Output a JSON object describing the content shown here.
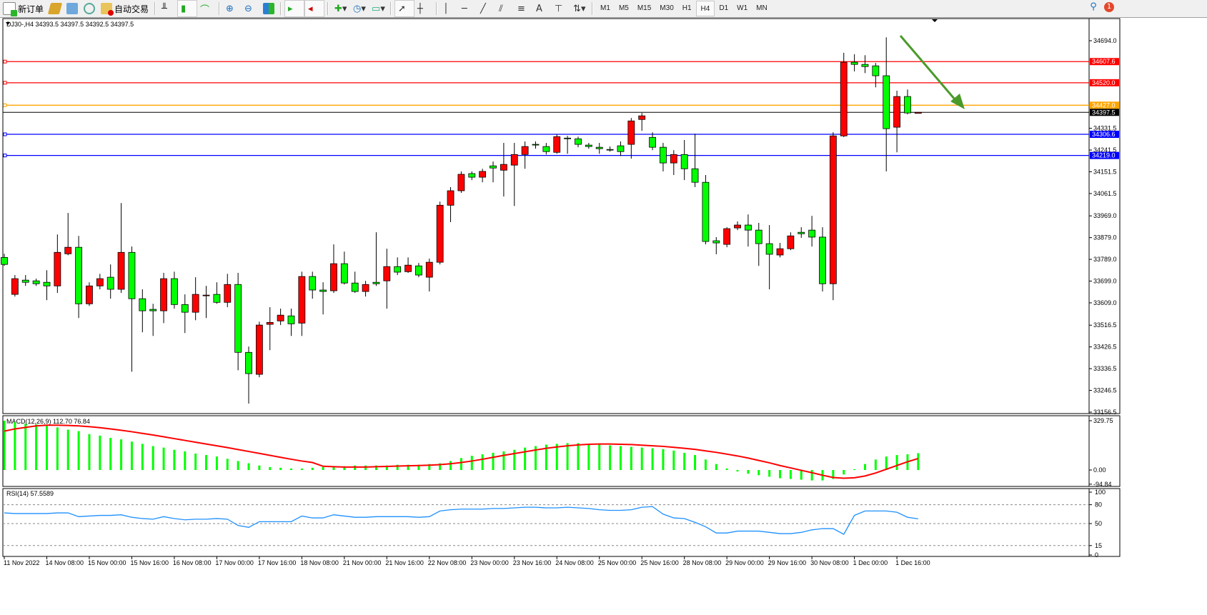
{
  "toolbar": {
    "new_order": "新订单",
    "auto_trading": "自动交易",
    "timeframes": [
      "M1",
      "M5",
      "M15",
      "M30",
      "H1",
      "H4",
      "D1",
      "W1",
      "MN"
    ],
    "active_timeframe": "H4",
    "notification_count": "1",
    "icons": [
      "new-order-icon",
      "market-watch-icon",
      "navigator-icon",
      "signals-icon",
      "auto-trading-icon",
      "bar-chart-icon",
      "candlestick-icon",
      "line-chart-icon",
      "zoom-in-icon",
      "zoom-out-icon",
      "tile-windows-icon",
      "auto-scroll-icon",
      "chart-shift-icon",
      "indicators-icon",
      "periods-icon",
      "templates-icon",
      "cursor-icon",
      "crosshair-icon",
      "vertical-line-icon",
      "horizontal-line-icon",
      "trendline-icon",
      "equidistant-channel-icon",
      "fibonacci-icon",
      "text-icon",
      "text-label-icon",
      "arrows-icon",
      "search-icon",
      "notification-icon"
    ]
  },
  "chart": {
    "header": "DJ30-,H4  34393.5 34397.5 34392.5 34397.5",
    "symbol": "DJ30-",
    "timeframe": "H4",
    "colors": {
      "bull": "#ff0000",
      "bear": "#00ff00",
      "macd_hist": "#00ff00",
      "signal": "#ff0000",
      "rsi": "#1e90ff",
      "arrow": "#4a9a2a"
    },
    "price_ticks": [
      "34694.0",
      "34331.5",
      "34241.5",
      "34151.5",
      "34061.5",
      "33969.0",
      "33879.0",
      "33789.0",
      "33699.0",
      "33609.0",
      "33516.5",
      "33426.5",
      "33336.5",
      "33246.5",
      "33156.5"
    ],
    "levels": [
      {
        "price": "34607.6",
        "color": "#ff0000"
      },
      {
        "price": "34520.0",
        "color": "#ff0000"
      },
      {
        "price": "34427.0",
        "color": "#ffa500"
      },
      {
        "price": "34397.5",
        "color": "#000000"
      },
      {
        "price": "34306.6",
        "color": "#0000ff"
      },
      {
        "price": "34219.0",
        "color": "#0000ff"
      }
    ],
    "time_labels": [
      "11 Nov 2022",
      "14 Nov 08:00",
      "15 Nov 00:00",
      "15 Nov 16:00",
      "16 Nov 08:00",
      "17 Nov 00:00",
      "17 Nov 16:00",
      "18 Nov 08:00",
      "21 Nov 00:00",
      "21 Nov 16:00",
      "22 Nov 08:00",
      "23 Nov 00:00",
      "23 Nov 16:00",
      "24 Nov 08:00",
      "25 Nov 00:00",
      "25 Nov 16:00",
      "28 Nov 08:00",
      "29 Nov 00:00",
      "29 Nov 16:00",
      "30 Nov 08:00",
      "1 Dec 00:00",
      "1 Dec 16:00"
    ]
  },
  "macd": {
    "label": "MACD(12,26,9) 112.70 76.84",
    "ticks": [
      "329.75",
      "0.00",
      "-94.84"
    ]
  },
  "rsi": {
    "label": "RSI(14) 57.5589",
    "ticks": [
      "100",
      "80",
      "50",
      "15",
      "0"
    ]
  },
  "chart_data": [
    {
      "type": "candlestick",
      "title": "DJ30-,H4",
      "ylim": [
        33156.5,
        34694.0
      ],
      "ohlc": [
        [
          33797,
          33812,
          33762,
          33768
        ],
        [
          33644,
          33724,
          33635,
          33709
        ],
        [
          33703,
          33724,
          33679,
          33694
        ],
        [
          33700,
          33709,
          33679,
          33688
        ],
        [
          33694,
          33744,
          33620,
          33679
        ],
        [
          33679,
          33892,
          33650,
          33818
        ],
        [
          33812,
          33981,
          33806,
          33839
        ],
        [
          33839,
          33886,
          33546,
          33605
        ],
        [
          33605,
          33694,
          33596,
          33679
        ],
        [
          33679,
          33729,
          33665,
          33709
        ],
        [
          33715,
          33768,
          33626,
          33665
        ],
        [
          33665,
          34022,
          33650,
          33818
        ],
        [
          33818,
          33842,
          33324,
          33626
        ],
        [
          33626,
          33665,
          33487,
          33576
        ],
        [
          33582,
          33605,
          33472,
          33576
        ],
        [
          33576,
          33733,
          33525,
          33709
        ],
        [
          33709,
          33738,
          33585,
          33602
        ],
        [
          33602,
          33644,
          33484,
          33570
        ],
        [
          33570,
          33715,
          33537,
          33644
        ],
        [
          33641,
          33679,
          33546,
          33641
        ],
        [
          33644,
          33694,
          33605,
          33611
        ],
        [
          33611,
          33729,
          33591,
          33685
        ],
        [
          33685,
          33733,
          33330,
          33404
        ],
        [
          33404,
          33428,
          33192,
          33316
        ],
        [
          33313,
          33531,
          33301,
          33517
        ],
        [
          33520,
          33591,
          33413,
          33528
        ],
        [
          33534,
          33585,
          33517,
          33558
        ],
        [
          33555,
          33585,
          33472,
          33522
        ],
        [
          33525,
          33738,
          33472,
          33718
        ],
        [
          33718,
          33738,
          33626,
          33662
        ],
        [
          33662,
          33694,
          33561,
          33656
        ],
        [
          33659,
          33851,
          33650,
          33771
        ],
        [
          33771,
          33821,
          33685,
          33691
        ],
        [
          33691,
          33738,
          33650,
          33656
        ],
        [
          33656,
          33700,
          33635,
          33685
        ],
        [
          33694,
          33901,
          33679,
          33688
        ],
        [
          33700,
          33833,
          33585,
          33759
        ],
        [
          33759,
          33797,
          33724,
          33736
        ],
        [
          33738,
          33797,
          33733,
          33765
        ],
        [
          33762,
          33774,
          33715,
          33724
        ],
        [
          33715,
          33792,
          33656,
          33777
        ],
        [
          33777,
          34028,
          33768,
          34013
        ],
        [
          34013,
          34088,
          33943,
          34073
        ],
        [
          34073,
          34153,
          34064,
          34141
        ],
        [
          34144,
          34153,
          34117,
          34129
        ],
        [
          34129,
          34164,
          34108,
          34153
        ],
        [
          34176,
          34194,
          34108,
          34167
        ],
        [
          34158,
          34271,
          34049,
          34182
        ],
        [
          34179,
          34271,
          34010,
          34223
        ],
        [
          34223,
          34277,
          34164,
          34256
        ],
        [
          34265,
          34277,
          34247,
          34262
        ],
        [
          34256,
          34271,
          34223,
          34235
        ],
        [
          34232,
          34306,
          34226,
          34297
        ],
        [
          34291,
          34300,
          34226,
          34288
        ],
        [
          34288,
          34297,
          34253,
          34265
        ],
        [
          34262,
          34271,
          34247,
          34256
        ],
        [
          34253,
          34271,
          34226,
          34247
        ],
        [
          34244,
          34256,
          34235,
          34241
        ],
        [
          34259,
          34277,
          34217,
          34235
        ],
        [
          34265,
          34374,
          34206,
          34362
        ],
        [
          34368,
          34395,
          34321,
          34383
        ],
        [
          34294,
          34315,
          34241,
          34253
        ],
        [
          34253,
          34271,
          34153,
          34188
        ],
        [
          34188,
          34241,
          34138,
          34223
        ],
        [
          34223,
          34283,
          34117,
          34164
        ],
        [
          34164,
          34309,
          34088,
          34108
        ],
        [
          34108,
          34138,
          33851,
          33863
        ],
        [
          33866,
          33881,
          33810,
          33857
        ],
        [
          33851,
          33922,
          33839,
          33916
        ],
        [
          33919,
          33946,
          33910,
          33931
        ],
        [
          33931,
          33975,
          33842,
          33910
        ],
        [
          33910,
          33940,
          33762,
          33854
        ],
        [
          33854,
          33931,
          33665,
          33810
        ],
        [
          33807,
          33857,
          33797,
          33833
        ],
        [
          33833,
          33901,
          33827,
          33886
        ],
        [
          33901,
          33922,
          33878,
          33895
        ],
        [
          33910,
          33969,
          33842,
          33881
        ],
        [
          33881,
          33922,
          33656,
          33688
        ],
        [
          33688,
          34315,
          33620,
          34300
        ],
        [
          34300,
          34644,
          34295,
          34605
        ],
        [
          34605,
          34638,
          34567,
          34596
        ],
        [
          34596,
          34634,
          34560,
          34587
        ],
        [
          34590,
          34602,
          34501,
          34549
        ],
        [
          34549,
          34708,
          34153,
          34330
        ],
        [
          34336,
          34487,
          34232,
          34463
        ],
        [
          34463,
          34492,
          34389,
          34395
        ],
        [
          34393.5,
          34397.5,
          34392.5,
          34397.5
        ]
      ]
    },
    {
      "type": "bar+line",
      "title": "MACD(12,26,9)",
      "ylim": [
        -94.84,
        329.75
      ],
      "series": [
        {
          "name": "MACD",
          "values": [
            330,
            320,
            310,
            305,
            295,
            285,
            270,
            260,
            240,
            230,
            215,
            205,
            190,
            175,
            160,
            150,
            135,
            125,
            110,
            100,
            90,
            75,
            60,
            45,
            30,
            20,
            15,
            10,
            10,
            15,
            20,
            25,
            25,
            30,
            30,
            30,
            30,
            35,
            35,
            35,
            40,
            45,
            60,
            80,
            95,
            105,
            115,
            125,
            135,
            150,
            160,
            170,
            175,
            180,
            180,
            175,
            170,
            165,
            160,
            155,
            150,
            145,
            140,
            130,
            115,
            100,
            70,
            40,
            10,
            -10,
            -25,
            -35,
            -45,
            -55,
            -60,
            -65,
            -70,
            -70,
            -60,
            -30,
            5,
            40,
            70,
            90,
            100,
            105,
            112.7
          ]
        },
        {
          "name": "Signal",
          "values": [
            260,
            275,
            285,
            295,
            300,
            300,
            298,
            295,
            290,
            283,
            275,
            266,
            256,
            245,
            234,
            222,
            210,
            198,
            186,
            174,
            162,
            150,
            137,
            124,
            111,
            98,
            85,
            72,
            60,
            50,
            25,
            22,
            20,
            20,
            20,
            22,
            24,
            26,
            28,
            30,
            32,
            36,
            42,
            50,
            60,
            72,
            85,
            98,
            110,
            122,
            134,
            145,
            154,
            162,
            168,
            172,
            174,
            174,
            172,
            170,
            166,
            162,
            158,
            152,
            145,
            138,
            128,
            118,
            106,
            94,
            80,
            64,
            48,
            30,
            14,
            -2,
            -18,
            -35,
            -50,
            -55,
            -52,
            -40,
            -20,
            5,
            30,
            55,
            76.84
          ]
        }
      ]
    },
    {
      "type": "line",
      "title": "RSI(14)",
      "ylim": [
        0,
        100
      ],
      "levels": [
        80,
        50,
        15
      ],
      "values": [
        67,
        66,
        66,
        66,
        66,
        67,
        67,
        61,
        62,
        63,
        63,
        64,
        60,
        58,
        57,
        61,
        58,
        56,
        57,
        57,
        58,
        57,
        47,
        44,
        53,
        53,
        53,
        53,
        62,
        59,
        59,
        64,
        62,
        60,
        60,
        61,
        61,
        61,
        61,
        60,
        61,
        70,
        72,
        73,
        73,
        73,
        74,
        74,
        75,
        76,
        76,
        75,
        75,
        76,
        75,
        74,
        72,
        71,
        71,
        72,
        76,
        77,
        65,
        59,
        58,
        52,
        45,
        35,
        35,
        38,
        38,
        38,
        36,
        34,
        34,
        36,
        40,
        42,
        42,
        33,
        63,
        70,
        70,
        70,
        68,
        60,
        57.5589
      ]
    }
  ]
}
